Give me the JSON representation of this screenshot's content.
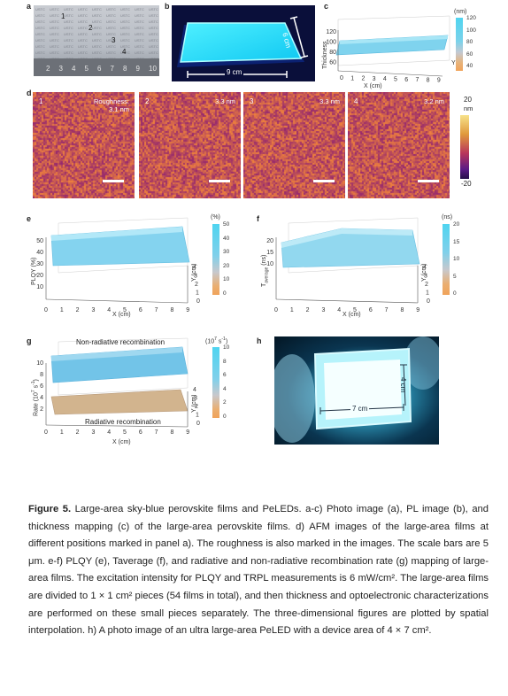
{
  "panels": {
    "a": "a",
    "b": "b",
    "c": "c",
    "d": "d",
    "e": "e",
    "f": "f",
    "g": "g",
    "h": "h"
  },
  "panel_a": {
    "ruler_numbers": [
      "2",
      "3",
      "4",
      "5",
      "6",
      "7",
      "8",
      "9",
      "10"
    ],
    "markers": [
      "1",
      "2",
      "3",
      "4"
    ],
    "substrate_text": "USTC"
  },
  "panel_b": {
    "width_label": "9 cm",
    "height_label": "6 cm"
  },
  "panel_c": {
    "xlabel": "X (cm)",
    "zlabel": "Thickness",
    "ylabel": "Y",
    "unit": "(nm)",
    "colorbar_ticks": [
      "120",
      "100",
      "80",
      "60",
      "40"
    ],
    "z_ticks": [
      "120",
      "100",
      "80",
      "60"
    ],
    "x_ticks": [
      "0",
      "1",
      "2",
      "3",
      "4",
      "5",
      "6",
      "7",
      "8",
      "9"
    ]
  },
  "panel_d": {
    "images": [
      {
        "num": "1",
        "value": "Roughness:\n3.1 nm"
      },
      {
        "num": "2",
        "value": "3.3 nm"
      },
      {
        "num": "3",
        "value": "3.3 nm"
      },
      {
        "num": "4",
        "value": "3.2 nm"
      }
    ],
    "colorbar_top": "20",
    "colorbar_unit": "nm",
    "colorbar_bottom": "-20"
  },
  "panel_e": {
    "zlabel": "PLQY (%)",
    "xlabel": "X (cm)",
    "ylabel": "Y (cm)",
    "unit": "(%)",
    "colorbar_ticks": [
      "50",
      "40",
      "30",
      "20",
      "10",
      "0"
    ],
    "z_ticks": [
      "50",
      "40",
      "30",
      "20",
      "10"
    ],
    "x_ticks": [
      "0",
      "1",
      "2",
      "3",
      "4",
      "5",
      "6",
      "7",
      "8",
      "9"
    ],
    "y_ticks": [
      "4",
      "3",
      "2",
      "1",
      "0"
    ]
  },
  "panel_f": {
    "zlabel": "T_average (ns)",
    "zlabel_main": "T",
    "zlabel_sub": "average",
    "zlabel_unit": "(ns)",
    "xlabel": "X (cm)",
    "ylabel": "Y (cm)",
    "unit": "(ns)",
    "colorbar_ticks": [
      "20",
      "15",
      "10",
      "5",
      "0"
    ],
    "z_ticks": [
      "20",
      "15",
      "10"
    ],
    "x_ticks": [
      "0",
      "1",
      "2",
      "3",
      "4",
      "5",
      "6",
      "7",
      "8",
      "9"
    ],
    "y_ticks": [
      "4",
      "3",
      "2",
      "1",
      "0"
    ]
  },
  "panel_g": {
    "zlabel": "Rate (10^7 s^-1)",
    "top_label": "Non-radiative recombination",
    "bottom_label": "Radiative recombination",
    "xlabel": "X (cm)",
    "ylabel": "Y (cm)",
    "unit": "(10^7 s^-1)",
    "colorbar_ticks": [
      "10",
      "8",
      "6",
      "4",
      "2",
      "0"
    ],
    "z_ticks": [
      "10",
      "8",
      "6",
      "4",
      "2"
    ],
    "x_ticks": [
      "0",
      "1",
      "2",
      "3",
      "4",
      "5",
      "6",
      "7",
      "8",
      "9"
    ],
    "y_ticks": [
      "4",
      "3",
      "2",
      "1",
      "0"
    ]
  },
  "panel_h": {
    "width_label": "7 cm",
    "height_label": "4 cm"
  },
  "caption": {
    "title": "Figure 5.",
    "text": " Large-area sky-blue perovskite films and PeLEDs. a-c) Photo image (a), PL image (b), and thickness mapping (c) of the large-area perovskite films. d) AFM images of the large-area films at different positions marked in panel a). The roughness is also marked in the images. The scale bars are 5 μm. e-f) PLQY (e), Taverage (f), and radiative and non-radiative recombination rate (g) mapping of large-area films. The excitation intensity for PLQY and TRPL measurements is 6 mW/cm². The large-area films are divided to 1 × 1 cm² pieces (54 films in total), and then thickness and optoelectronic characterizations are performed on these small pieces separately. The three-dimensional figures are plotted by spatial interpolation. h) A photo image of an ultra large-area PeLED with a device area of 4 × 7 cm²."
  }
}
